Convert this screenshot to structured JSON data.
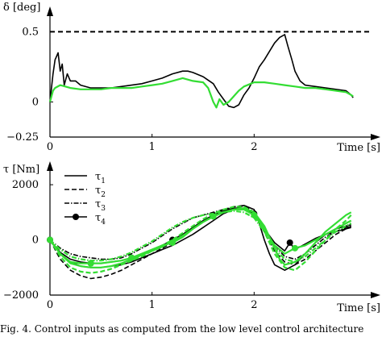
{
  "caption": "Fig. 4.   Control inputs as computed from the low level control architecture",
  "colors": {
    "black": "#000000",
    "green": "#33dd33"
  },
  "chart_data": [
    {
      "type": "line",
      "title": "",
      "ylabel": "δ [deg]",
      "xlabel": "Time [s]",
      "xlim": [
        0,
        3
      ],
      "ylim": [
        -0.25,
        0.6
      ],
      "xticks": [
        0,
        1,
        2
      ],
      "yticks": [
        0.5,
        0,
        -0.25
      ],
      "ytick_labels": [
        "0.5",
        "0",
        "−0.25"
      ],
      "grid": false,
      "reference_line": {
        "y": 0.5,
        "style": "dashed"
      },
      "series": [
        {
          "color": "black",
          "style": "solid",
          "x": [
            0,
            0.03,
            0.05,
            0.08,
            0.1,
            0.12,
            0.14,
            0.17,
            0.2,
            0.25,
            0.3,
            0.4,
            0.5,
            0.6,
            0.7,
            0.8,
            0.9,
            1.0,
            1.1,
            1.2,
            1.3,
            1.35,
            1.4,
            1.5,
            1.6,
            1.65,
            1.7,
            1.75,
            1.8,
            1.85,
            1.9,
            1.95,
            2.0,
            2.05,
            2.1,
            2.15,
            2.2,
            2.25,
            2.3,
            2.33,
            2.37,
            2.4,
            2.45,
            2.5,
            2.6,
            2.7,
            2.8,
            2.9,
            2.95,
            2.97
          ],
          "y": [
            0.0,
            0.2,
            0.3,
            0.35,
            0.22,
            0.27,
            0.12,
            0.2,
            0.15,
            0.15,
            0.12,
            0.1,
            0.1,
            0.1,
            0.11,
            0.12,
            0.13,
            0.15,
            0.17,
            0.2,
            0.22,
            0.22,
            0.21,
            0.18,
            0.13,
            0.07,
            0.02,
            -0.03,
            -0.04,
            -0.02,
            0.05,
            0.1,
            0.17,
            0.25,
            0.3,
            0.36,
            0.42,
            0.46,
            0.48,
            0.4,
            0.3,
            0.22,
            0.15,
            0.12,
            0.11,
            0.1,
            0.09,
            0.08,
            0.05,
            0.03
          ]
        },
        {
          "color": "green",
          "style": "solid",
          "x": [
            0,
            0.03,
            0.05,
            0.1,
            0.2,
            0.3,
            0.4,
            0.5,
            0.6,
            0.7,
            0.8,
            0.9,
            1.0,
            1.1,
            1.2,
            1.3,
            1.4,
            1.5,
            1.55,
            1.6,
            1.63,
            1.66,
            1.7,
            1.75,
            1.8,
            1.85,
            1.9,
            2.0,
            2.1,
            2.2,
            2.3,
            2.4,
            2.5,
            2.6,
            2.7,
            2.8,
            2.9,
            2.95,
            2.97
          ],
          "y": [
            0.0,
            0.08,
            0.1,
            0.12,
            0.1,
            0.09,
            0.09,
            0.09,
            0.1,
            0.1,
            0.1,
            0.11,
            0.12,
            0.13,
            0.15,
            0.17,
            0.15,
            0.14,
            0.1,
            0.0,
            -0.04,
            0.02,
            -0.02,
            0.0,
            0.04,
            0.08,
            0.11,
            0.14,
            0.14,
            0.13,
            0.12,
            0.11,
            0.1,
            0.1,
            0.09,
            0.08,
            0.07,
            0.05,
            0.04
          ]
        }
      ]
    },
    {
      "type": "line",
      "title": "",
      "ylabel": "τ [Nm]",
      "xlabel": "Time [s]",
      "xlim": [
        0,
        3
      ],
      "ylim": [
        -2000,
        2500
      ],
      "xticks": [
        0,
        1,
        2
      ],
      "yticks": [
        2000,
        0,
        -2000
      ],
      "ytick_labels": [
        "2000",
        "0",
        "−2000"
      ],
      "grid": false,
      "legend": {
        "placement": "top-left",
        "entries": [
          {
            "sym": "τ",
            "sub": "1",
            "style": "solid"
          },
          {
            "sym": "τ",
            "sub": "2",
            "style": "dashed"
          },
          {
            "sym": "τ",
            "sub": "3",
            "style": "dashdot"
          },
          {
            "sym": "τ",
            "sub": "4",
            "style": "marker"
          }
        ]
      },
      "series": [
        {
          "label": "τ1",
          "color": "black",
          "style": "solid",
          "x": [
            0,
            0.1,
            0.2,
            0.3,
            0.4,
            0.5,
            0.6,
            0.7,
            0.8,
            0.9,
            1.0,
            1.1,
            1.2,
            1.3,
            1.4,
            1.5,
            1.6,
            1.7,
            1.8,
            1.9,
            2.0,
            2.05,
            2.1,
            2.15,
            2.2,
            2.3,
            2.4,
            2.5,
            2.6,
            2.7,
            2.8,
            2.9,
            2.95
          ],
          "y": [
            0,
            -500,
            -800,
            -950,
            -1000,
            -1000,
            -950,
            -900,
            -800,
            -650,
            -500,
            -350,
            -200,
            0,
            200,
            450,
            700,
            950,
            1100,
            1250,
            1100,
            600,
            0,
            -500,
            -900,
            -1100,
            -900,
            -500,
            -100,
            200,
            400,
            500,
            550
          ]
        },
        {
          "label": "τ2",
          "color": "black",
          "style": "dashed",
          "x": [
            0,
            0.1,
            0.2,
            0.3,
            0.4,
            0.5,
            0.6,
            0.7,
            0.8,
            0.9,
            1.0,
            1.1,
            1.2,
            1.3,
            1.4,
            1.5,
            1.6,
            1.7,
            1.8,
            1.9,
            2.0,
            2.1,
            2.2,
            2.3,
            2.4,
            2.5,
            2.6,
            2.7,
            2.8,
            2.9,
            2.95
          ],
          "y": [
            0,
            -700,
            -1100,
            -1300,
            -1400,
            -1350,
            -1250,
            -1100,
            -900,
            -700,
            -500,
            -300,
            -100,
            150,
            400,
            650,
            900,
            1100,
            1200,
            1250,
            1000,
            300,
            -400,
            -800,
            -900,
            -700,
            -400,
            -100,
            200,
            400,
            500
          ]
        },
        {
          "label": "τ3",
          "color": "black",
          "style": "dashdot",
          "x": [
            0,
            0.1,
            0.2,
            0.3,
            0.4,
            0.5,
            0.6,
            0.7,
            0.8,
            0.9,
            1.0,
            1.1,
            1.2,
            1.3,
            1.4,
            1.5,
            1.6,
            1.7,
            1.8,
            1.9,
            2.0,
            2.1,
            2.2,
            2.3,
            2.4,
            2.5,
            2.6,
            2.7,
            2.8,
            2.9,
            2.95
          ],
          "y": [
            0,
            -300,
            -500,
            -600,
            -650,
            -700,
            -700,
            -650,
            -500,
            -300,
            -100,
            150,
            400,
            600,
            800,
            900,
            1000,
            1100,
            1150,
            1100,
            900,
            400,
            -200,
            -600,
            -700,
            -500,
            -200,
            100,
            300,
            450,
            500
          ]
        },
        {
          "label": "τ4",
          "color": "black",
          "style": "marker",
          "x": [
            0,
            0.1,
            0.2,
            0.3,
            0.4,
            0.5,
            0.6,
            0.7,
            0.8,
            0.9,
            1.0,
            1.1,
            1.2,
            1.3,
            1.4,
            1.5,
            1.6,
            1.7,
            1.8,
            1.9,
            2.0,
            2.1,
            2.2,
            2.3,
            2.35,
            2.4,
            2.5,
            2.6,
            2.7,
            2.8,
            2.9,
            2.95
          ],
          "y": [
            0,
            -450,
            -700,
            -800,
            -850,
            -850,
            -800,
            -750,
            -650,
            -500,
            -350,
            -200,
            0,
            200,
            450,
            700,
            900,
            1050,
            1150,
            1150,
            950,
            400,
            -100,
            -400,
            -100,
            -350,
            -150,
            50,
            200,
            300,
            400,
            450
          ],
          "markers_x": [
            0,
            0.4,
            0.8,
            1.2,
            1.6,
            2.0,
            2.35
          ],
          "markers_y": [
            0,
            -850,
            -650,
            0,
            900,
            950,
            -100
          ]
        },
        {
          "color": "green",
          "style": "solid",
          "x": [
            0,
            0.1,
            0.2,
            0.3,
            0.4,
            0.5,
            0.6,
            0.7,
            0.8,
            0.9,
            1.0,
            1.1,
            1.2,
            1.3,
            1.4,
            1.5,
            1.6,
            1.7,
            1.8,
            1.9,
            2.0,
            2.1,
            2.2,
            2.25,
            2.3,
            2.4,
            2.5,
            2.6,
            2.7,
            2.8,
            2.9,
            2.95
          ],
          "y": [
            0,
            -500,
            -850,
            -950,
            -1000,
            -1000,
            -950,
            -850,
            -700,
            -550,
            -400,
            -250,
            -50,
            150,
            400,
            650,
            850,
            1000,
            1100,
            1150,
            1000,
            500,
            -300,
            -700,
            -900,
            -800,
            -500,
            -100,
            300,
            600,
            900,
            1000
          ]
        },
        {
          "color": "green",
          "style": "dashed",
          "x": [
            0,
            0.1,
            0.2,
            0.3,
            0.4,
            0.5,
            0.6,
            0.7,
            0.8,
            0.9,
            1.0,
            1.1,
            1.2,
            1.3,
            1.4,
            1.5,
            1.6,
            1.7,
            1.8,
            1.9,
            2.0,
            2.1,
            2.2,
            2.3,
            2.4,
            2.5,
            2.6,
            2.7,
            2.8,
            2.9,
            2.95
          ],
          "y": [
            0,
            -600,
            -1000,
            -1150,
            -1200,
            -1150,
            -1050,
            -900,
            -750,
            -600,
            -400,
            -200,
            0,
            250,
            500,
            750,
            950,
            1100,
            1200,
            1200,
            1000,
            300,
            -500,
            -1000,
            -1100,
            -800,
            -400,
            0,
            400,
            700,
            900
          ]
        },
        {
          "color": "green",
          "style": "dashdot",
          "x": [
            0,
            0.1,
            0.2,
            0.3,
            0.4,
            0.5,
            0.6,
            0.7,
            0.8,
            0.9,
            1.0,
            1.1,
            1.2,
            1.3,
            1.4,
            1.5,
            1.6,
            1.7,
            1.8,
            1.9,
            2.0,
            2.1,
            2.2,
            2.3,
            2.4,
            2.5,
            2.6,
            2.7,
            2.8,
            2.9,
            2.95
          ],
          "y": [
            0,
            -350,
            -600,
            -700,
            -750,
            -750,
            -700,
            -600,
            -450,
            -250,
            -50,
            200,
            450,
            650,
            800,
            900,
            950,
            1000,
            1050,
            1000,
            800,
            300,
            -300,
            -700,
            -800,
            -600,
            -300,
            0,
            300,
            500,
            600
          ]
        },
        {
          "color": "green",
          "style": "marker",
          "x": [
            0,
            0.1,
            0.2,
            0.3,
            0.4,
            0.5,
            0.6,
            0.7,
            0.8,
            0.9,
            1.0,
            1.1,
            1.2,
            1.3,
            1.4,
            1.5,
            1.6,
            1.7,
            1.8,
            1.9,
            2.0,
            2.1,
            2.2,
            2.3,
            2.4,
            2.5,
            2.6,
            2.7,
            2.8,
            2.9,
            2.95
          ],
          "y": [
            0,
            -500,
            -800,
            -850,
            -850,
            -850,
            -800,
            -750,
            -650,
            -500,
            -350,
            -200,
            -100,
            100,
            400,
            650,
            850,
            1000,
            1100,
            1100,
            900,
            400,
            -200,
            -500,
            -300,
            -200,
            0,
            200,
            400,
            600,
            700
          ],
          "markers_x": [
            0,
            0.4,
            0.8,
            1.2,
            1.6,
            2.0,
            2.4
          ],
          "markers_y": [
            0,
            -850,
            -650,
            -100,
            850,
            900,
            -300
          ]
        }
      ]
    }
  ]
}
